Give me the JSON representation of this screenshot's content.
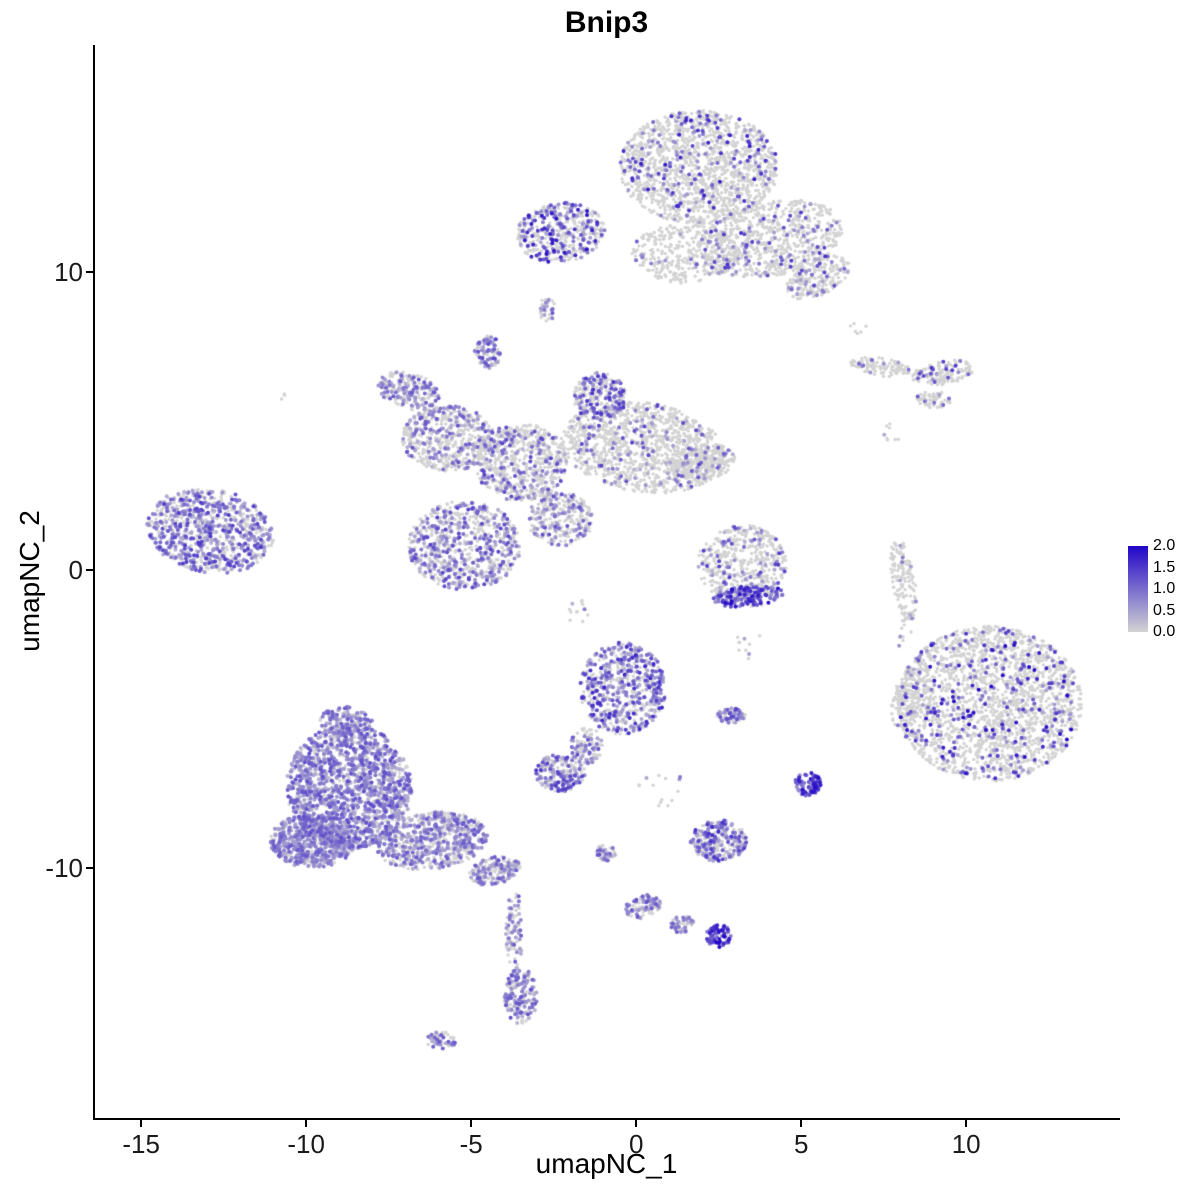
{
  "chart_data": {
    "type": "scatter",
    "title": "Bnip3",
    "xlabel": "umapNC_1",
    "ylabel": "umapNC_2",
    "xlim": [
      -16.4,
      14.6
    ],
    "ylim": [
      -18.4,
      17.6
    ],
    "x_ticks": [
      -15,
      -10,
      -5,
      0,
      5,
      10
    ],
    "y_ticks": [
      10,
      0,
      -10
    ],
    "grid": false,
    "legend": {
      "position": "right",
      "tick_labels": [
        "2.0",
        "1.5",
        "1.0",
        "0.5",
        "0.0"
      ],
      "value_min": 0.0,
      "value_max": 2.0
    },
    "color_scale": {
      "low": "#d3d3d3",
      "high": "#2105c7",
      "min": 0.0,
      "max": 2.0
    },
    "clusters": [
      {
        "id": "top-main-blob",
        "cx": 1.9,
        "cy": 13.5,
        "rx": 2.4,
        "ry": 1.9,
        "rot": 0,
        "n": 1500,
        "frac": 0.12,
        "lo": 0.4,
        "hi": 1.8
      },
      {
        "id": "top-left-wing",
        "cx": -2.3,
        "cy": 11.3,
        "rx": 1.35,
        "ry": 1.0,
        "rot": 10,
        "n": 460,
        "frac": 0.4,
        "lo": 0.4,
        "hi": 1.9
      },
      {
        "id": "top-right-wing",
        "cx": 4.1,
        "cy": 11.1,
        "rx": 2.2,
        "ry": 1.25,
        "rot": 12,
        "n": 750,
        "frac": 0.12,
        "lo": 0.4,
        "hi": 1.6
      },
      {
        "id": "top-right-arm",
        "cx": 5.5,
        "cy": 9.8,
        "rx": 1.05,
        "ry": 0.6,
        "rot": 30,
        "n": 220,
        "frac": 0.12,
        "lo": 0.4,
        "hi": 1.4
      },
      {
        "id": "top-connector",
        "cx": 1.5,
        "cy": 10.6,
        "rx": 1.65,
        "ry": 1.0,
        "rot": 0,
        "n": 350,
        "frac": 0.07,
        "lo": 0.4,
        "hi": 1.2
      },
      {
        "id": "tiny-mid-upper",
        "cx": -2.7,
        "cy": 8.7,
        "rx": 0.25,
        "ry": 0.45,
        "rot": 0,
        "n": 30,
        "frac": 0.4,
        "lo": 0.4,
        "hi": 1.2
      },
      {
        "id": "right-sliver-1",
        "cx": 7.4,
        "cy": 6.8,
        "rx": 0.95,
        "ry": 0.3,
        "rot": -8,
        "n": 110,
        "frac": 0.08,
        "lo": 0.4,
        "hi": 1.2
      },
      {
        "id": "right-sliver-2",
        "cx": 9.3,
        "cy": 6.6,
        "rx": 0.95,
        "ry": 0.4,
        "rot": 10,
        "n": 140,
        "frac": 0.15,
        "lo": 0.4,
        "hi": 1.6
      },
      {
        "id": "right-sliver-3",
        "cx": 9.0,
        "cy": 5.7,
        "rx": 0.55,
        "ry": 0.28,
        "rot": 0,
        "n": 60,
        "frac": 0.15,
        "lo": 0.4,
        "hi": 1.2
      },
      {
        "id": "spider-arm-topleft",
        "cx": -6.9,
        "cy": 6.0,
        "rx": 0.95,
        "ry": 0.6,
        "rot": -20,
        "n": 220,
        "frac": 0.5,
        "lo": 0.3,
        "hi": 1.2
      },
      {
        "id": "spider-left-body",
        "cx": -5.7,
        "cy": 4.4,
        "rx": 1.4,
        "ry": 1.1,
        "rot": 0,
        "n": 550,
        "frac": 0.3,
        "lo": 0.3,
        "hi": 1.3
      },
      {
        "id": "spider-center",
        "cx": -3.5,
        "cy": 3.6,
        "rx": 1.4,
        "ry": 1.3,
        "rot": 0,
        "n": 650,
        "frac": 0.3,
        "lo": 0.3,
        "hi": 1.4
      },
      {
        "id": "spider-top-knob",
        "cx": -4.5,
        "cy": 7.3,
        "rx": 0.4,
        "ry": 0.55,
        "rot": 0,
        "n": 100,
        "frac": 0.55,
        "lo": 0.4,
        "hi": 1.4
      },
      {
        "id": "spider-right-body",
        "cx": 0.2,
        "cy": 4.1,
        "rx": 2.5,
        "ry": 1.5,
        "rot": -10,
        "n": 1200,
        "frac": 0.12,
        "lo": 0.3,
        "hi": 1.4
      },
      {
        "id": "spider-mid-knob",
        "cx": -1.1,
        "cy": 5.8,
        "rx": 0.8,
        "ry": 0.8,
        "rot": 0,
        "n": 250,
        "frac": 0.45,
        "lo": 0.4,
        "hi": 1.6
      },
      {
        "id": "spider-lower-lobe",
        "cx": -5.2,
        "cy": 0.8,
        "rx": 1.7,
        "ry": 1.5,
        "rot": 0,
        "n": 750,
        "frac": 0.45,
        "lo": 0.3,
        "hi": 1.4
      },
      {
        "id": "spider-lower-streak",
        "cx": -2.3,
        "cy": 1.7,
        "rx": 1.0,
        "ry": 0.9,
        "rot": 0,
        "n": 300,
        "frac": 0.3,
        "lo": 0.3,
        "hi": 1.3
      },
      {
        "id": "spider-right-arm",
        "cx": 2.0,
        "cy": 3.6,
        "rx": 1.0,
        "ry": 0.6,
        "rot": 10,
        "n": 200,
        "frac": 0.15,
        "lo": 0.3,
        "hi": 1.2
      },
      {
        "id": "far-left-cluster",
        "cx": -12.9,
        "cy": 1.3,
        "rx": 1.95,
        "ry": 1.4,
        "rot": -12,
        "n": 850,
        "frac": 0.55,
        "lo": 0.3,
        "hi": 1.5
      },
      {
        "id": "mid-right-cluster",
        "cx": 3.2,
        "cy": 0.2,
        "rx": 1.35,
        "ry": 1.3,
        "rot": 0,
        "n": 480,
        "frac": 0.18,
        "lo": 0.3,
        "hi": 1.5
      },
      {
        "id": "mid-right-dense-edge",
        "cx": 3.4,
        "cy": -0.9,
        "rx": 1.1,
        "ry": 0.35,
        "rot": 5,
        "n": 160,
        "frac": 0.8,
        "lo": 0.6,
        "hi": 2.0
      },
      {
        "id": "right-thin-sliver",
        "cx": 8.1,
        "cy": -0.3,
        "rx": 0.35,
        "ry": 1.45,
        "rot": 8,
        "n": 140,
        "frac": 0.06,
        "lo": 0.4,
        "hi": 1.0
      },
      {
        "id": "big-right-cluster",
        "cx": 10.7,
        "cy": -4.5,
        "rx": 2.8,
        "ry": 2.6,
        "rot": 0,
        "n": 2100,
        "frac": 0.15,
        "lo": 0.4,
        "hi": 2.0
      },
      {
        "id": "big-right-appendage",
        "cx": 8.3,
        "cy": -4.2,
        "rx": 0.5,
        "ry": 1.2,
        "rot": -15,
        "n": 160,
        "frac": 0.1,
        "lo": 0.4,
        "hi": 1.4
      },
      {
        "id": "center-speckled",
        "cx": -0.4,
        "cy": -4.0,
        "rx": 1.3,
        "ry": 1.55,
        "rot": 0,
        "n": 600,
        "frac": 0.55,
        "lo": 0.3,
        "hi": 1.7
      },
      {
        "id": "center-tail",
        "cx": -1.5,
        "cy": -5.9,
        "rx": 0.5,
        "ry": 0.6,
        "rot": 0,
        "n": 100,
        "frac": 0.4,
        "lo": 0.3,
        "hi": 1.3
      },
      {
        "id": "small-pair",
        "cx": 2.9,
        "cy": -4.9,
        "rx": 0.45,
        "ry": 0.25,
        "rot": 0,
        "n": 70,
        "frac": 0.5,
        "lo": 0.4,
        "hi": 1.4
      },
      {
        "id": "small-mid-lower",
        "cx": -2.3,
        "cy": -6.8,
        "rx": 0.75,
        "ry": 0.65,
        "rot": 0,
        "n": 220,
        "frac": 0.5,
        "lo": 0.3,
        "hi": 1.5
      },
      {
        "id": "bottomleft-core",
        "cx": -8.7,
        "cy": -7.3,
        "rx": 1.9,
        "ry": 2.1,
        "rot": 0,
        "n": 1600,
        "frac": 0.75,
        "lo": 0.3,
        "hi": 1.3
      },
      {
        "id": "bottomleft-left-edge",
        "cx": -9.8,
        "cy": -9.1,
        "rx": 1.3,
        "ry": 0.9,
        "rot": 0,
        "n": 600,
        "frac": 0.75,
        "lo": 0.3,
        "hi": 1.2
      },
      {
        "id": "bottomleft-taper",
        "cx": -6.2,
        "cy": -9.1,
        "rx": 1.7,
        "ry": 0.95,
        "rot": 8,
        "n": 650,
        "frac": 0.55,
        "lo": 0.3,
        "hi": 1.2
      },
      {
        "id": "bottomleft-tail-tip",
        "cx": -4.3,
        "cy": -10.1,
        "rx": 0.8,
        "ry": 0.45,
        "rot": 15,
        "n": 180,
        "frac": 0.55,
        "lo": 0.3,
        "hi": 1.2
      },
      {
        "id": "bottomleft-top-knob",
        "cx": -8.8,
        "cy": -5.1,
        "rx": 0.8,
        "ry": 0.5,
        "rot": 0,
        "n": 150,
        "frac": 0.7,
        "lo": 0.3,
        "hi": 1.2
      },
      {
        "id": "small-dark-purple",
        "cx": 5.2,
        "cy": -7.2,
        "rx": 0.4,
        "ry": 0.4,
        "rot": 0,
        "n": 90,
        "frac": 0.9,
        "lo": 0.6,
        "hi": 2.0
      },
      {
        "id": "small-bottom-mid",
        "cx": 2.5,
        "cy": -9.1,
        "rx": 0.85,
        "ry": 0.7,
        "rot": 0,
        "n": 260,
        "frac": 0.6,
        "lo": 0.3,
        "hi": 1.6
      },
      {
        "id": "chain-1",
        "cx": -0.9,
        "cy": -9.5,
        "rx": 0.3,
        "ry": 0.3,
        "rot": 0,
        "n": 50,
        "frac": 0.5,
        "lo": 0.3,
        "hi": 1.3
      },
      {
        "id": "chain-2",
        "cx": 0.2,
        "cy": -11.3,
        "rx": 0.55,
        "ry": 0.4,
        "rot": 20,
        "n": 90,
        "frac": 0.5,
        "lo": 0.3,
        "hi": 1.3
      },
      {
        "id": "chain-3",
        "cx": 1.4,
        "cy": -11.9,
        "rx": 0.35,
        "ry": 0.3,
        "rot": 0,
        "n": 50,
        "frac": 0.5,
        "lo": 0.3,
        "hi": 1.3
      },
      {
        "id": "chain-dense-end",
        "cx": 2.5,
        "cy": -12.3,
        "rx": 0.38,
        "ry": 0.38,
        "rot": 0,
        "n": 70,
        "frac": 0.9,
        "lo": 0.8,
        "hi": 2.0
      },
      {
        "id": "vertical-tail",
        "cx": -3.7,
        "cy": -12.1,
        "rx": 0.25,
        "ry": 1.5,
        "rot": 0,
        "n": 90,
        "frac": 0.45,
        "lo": 0.3,
        "hi": 1.2
      },
      {
        "id": "vertical-tail-end",
        "cx": -3.5,
        "cy": -14.3,
        "rx": 0.5,
        "ry": 0.95,
        "rot": 0,
        "n": 170,
        "frac": 0.6,
        "lo": 0.3,
        "hi": 1.3
      },
      {
        "id": "tiny-bottom",
        "cx": -5.9,
        "cy": -15.8,
        "rx": 0.45,
        "ry": 0.3,
        "rot": 0,
        "n": 55,
        "frac": 0.45,
        "lo": 0.3,
        "hi": 1.2
      },
      {
        "id": "sparse-left-dot",
        "cx": -10.7,
        "cy": 5.8,
        "rx": 0.15,
        "ry": 0.15,
        "rot": 0,
        "n": 3,
        "frac": 0.0,
        "lo": 0,
        "hi": 0
      },
      {
        "id": "sparse-right-upper",
        "cx": 7.7,
        "cy": 4.6,
        "rx": 0.4,
        "ry": 0.3,
        "rot": 0,
        "n": 8,
        "frac": 0.1,
        "lo": 0.4,
        "hi": 0.8
      },
      {
        "id": "sparse-right-mid",
        "cx": 8.2,
        "cy": -2.3,
        "rx": 0.3,
        "ry": 0.7,
        "rot": 0,
        "n": 10,
        "frac": 0.1,
        "lo": 0.4,
        "hi": 0.8
      },
      {
        "id": "sparse-center-right",
        "cx": 3.5,
        "cy": -2.5,
        "rx": 0.5,
        "ry": 0.5,
        "rot": 0,
        "n": 10,
        "frac": 0.2,
        "lo": 0.4,
        "hi": 1.0
      },
      {
        "id": "sparse-below-center",
        "cx": 0.8,
        "cy": -7.4,
        "rx": 0.8,
        "ry": 0.6,
        "rot": 0,
        "n": 14,
        "frac": 0.3,
        "lo": 0.3,
        "hi": 1.0
      },
      {
        "id": "sparse-above-right-slivers",
        "cx": 6.7,
        "cy": 8.1,
        "rx": 0.3,
        "ry": 0.2,
        "rot": 0,
        "n": 6,
        "frac": 0.1,
        "lo": 0.4,
        "hi": 0.8
      },
      {
        "id": "sparse-mid",
        "cx": -1.7,
        "cy": -1.5,
        "rx": 0.4,
        "ry": 0.5,
        "rot": 0,
        "n": 12,
        "frac": 0.3,
        "lo": 0.3,
        "hi": 1.0
      }
    ]
  }
}
